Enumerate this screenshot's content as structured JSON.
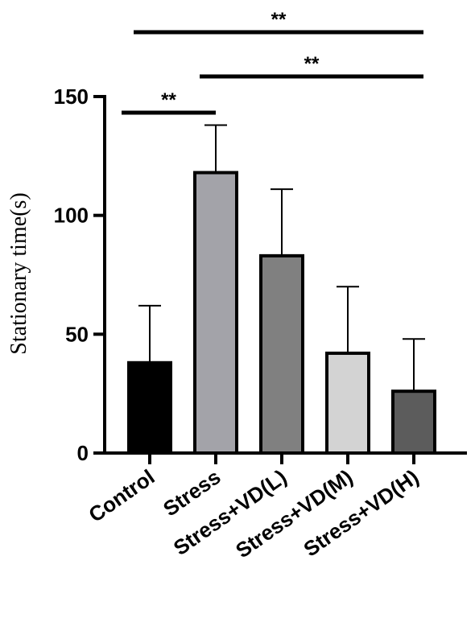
{
  "chart_data": {
    "type": "bar",
    "ylabel": "Stationary time(s)",
    "xlabel": "",
    "ylim": [
      0,
      150
    ],
    "yticks": [
      0,
      50,
      100,
      150
    ],
    "grid": false,
    "categories": [
      "Control",
      "Stress",
      "Stress+VD(L)",
      "Stress+VD(M)",
      "Stress+VD(H)"
    ],
    "values": [
      38,
      118,
      83,
      42,
      26
    ],
    "error_upper": [
      24,
      20,
      28,
      28,
      22
    ],
    "colors": [
      "#000000",
      "#a3a3a9",
      "#808080",
      "#d3d3d3",
      "#5c5c5c"
    ],
    "significance": [
      {
        "from": 0,
        "to": 1,
        "label": "**",
        "level": 0
      },
      {
        "from": 1,
        "to": 4,
        "label": "**",
        "level": 1
      },
      {
        "from": 0,
        "to": 4,
        "label": "**",
        "level": 2
      }
    ]
  }
}
